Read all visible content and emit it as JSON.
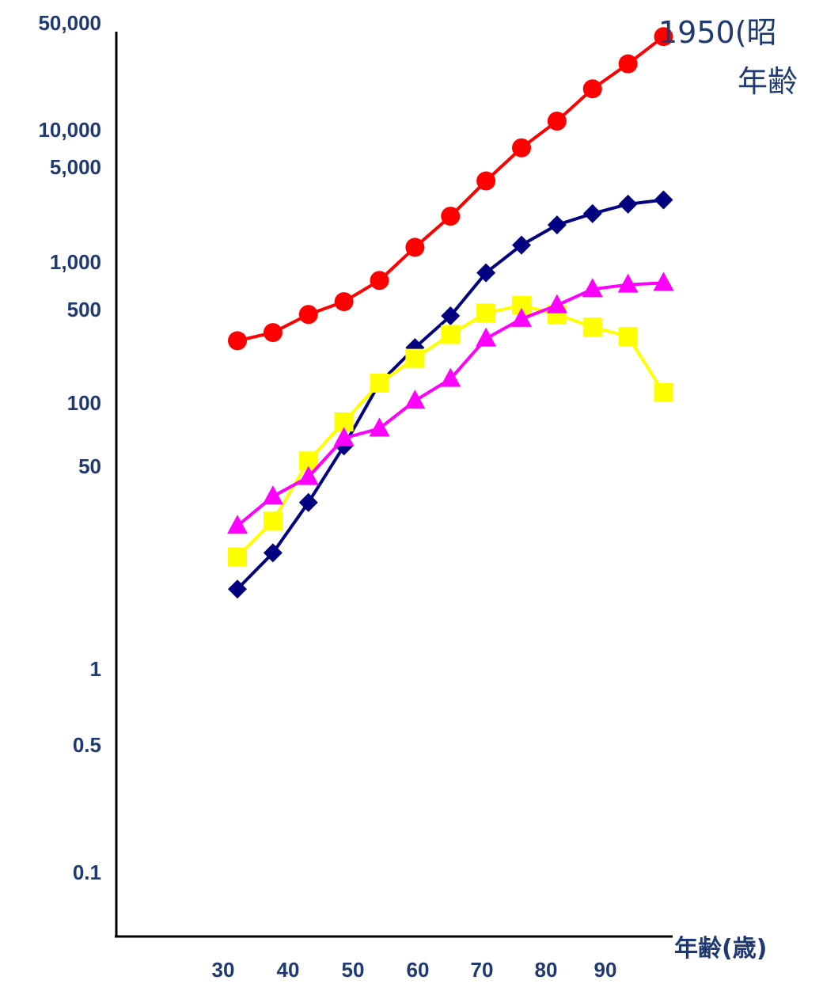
{
  "chart_data": {
    "type": "line",
    "title_line1": "1950(昭",
    "title_line2": "年齢",
    "xlabel": "年齢(歳)",
    "yscale": "log",
    "xlim": [
      30,
      95
    ],
    "y_tick_labels": [
      "50,000",
      "10,000",
      "5,000",
      "1,000",
      "500",
      "100",
      "50",
      "1",
      "0.5",
      "0.1"
    ],
    "x_tick_labels": [
      "30",
      "40",
      "50",
      "60",
      "70",
      "80",
      "90"
    ],
    "x": [
      32.5,
      37.5,
      42.5,
      47.5,
      52.5,
      57.5,
      62.5,
      67.5,
      72.5,
      77.5,
      82.5,
      87.5,
      92.5
    ],
    "series": [
      {
        "color": "#ff0000",
        "marker": "circle",
        "values": [
          280,
          320,
          430,
          530,
          750,
          1300,
          2200,
          4000,
          7000,
          11000,
          19000,
          29000,
          46000
        ]
      },
      {
        "color": "#000080",
        "marker": "diamond",
        "values": [
          4,
          7.5,
          18,
          48,
          140,
          250,
          420,
          850,
          1350,
          1900,
          2300,
          2700,
          2900
        ]
      },
      {
        "color": "#ffff00",
        "marker": "square",
        "values": [
          7,
          13,
          37,
          73,
          140,
          210,
          310,
          440,
          500,
          430,
          350,
          300,
          120
        ]
      },
      {
        "color": "#ff00ff",
        "marker": "triangle",
        "values": [
          12,
          20,
          28,
          55,
          65,
          105,
          150,
          290,
          400,
          500,
          650,
          700,
          720
        ]
      }
    ]
  }
}
